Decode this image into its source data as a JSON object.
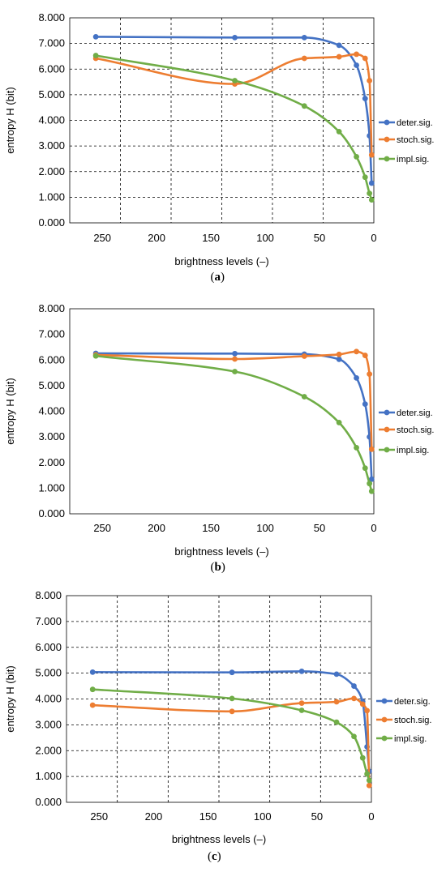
{
  "chart_data": [
    {
      "type": "line",
      "caption": "a",
      "xlabel": "brightness levels (–)",
      "ylabel": "entropy H (bit)",
      "xlim": [
        280,
        0
      ],
      "ylim": [
        0,
        8
      ],
      "x_ticks": [
        "250",
        "200",
        "150",
        "100",
        "50",
        "0"
      ],
      "y_ticks": [
        "0.000",
        "1.000",
        "2.000",
        "3.000",
        "4.000",
        "5.000",
        "6.000",
        "7.000",
        "8.000"
      ],
      "grid": "on",
      "legend": "right",
      "series": [
        {
          "name": "deter.sig.",
          "color": "#4472C4",
          "x": [
            256,
            128,
            64,
            32,
            16,
            8,
            4,
            2
          ],
          "y": [
            7.26,
            7.23,
            7.23,
            6.93,
            6.15,
            4.85,
            3.4,
            1.55
          ]
        },
        {
          "name": "stoch.sig.",
          "color": "#ED7D31",
          "x": [
            256,
            128,
            64,
            32,
            16,
            8,
            4,
            2
          ],
          "y": [
            6.42,
            5.42,
            6.42,
            6.48,
            6.58,
            6.42,
            5.55,
            2.65
          ]
        },
        {
          "name": "impl.sig.",
          "color": "#70AD47",
          "x": [
            256,
            128,
            64,
            32,
            16,
            8,
            4,
            2
          ],
          "y": [
            6.53,
            5.55,
            4.56,
            3.56,
            2.58,
            1.78,
            1.15,
            0.9
          ]
        }
      ]
    },
    {
      "type": "line",
      "caption": "b",
      "xlabel": "brightness levels (–)",
      "ylabel": "entropy H (bit)",
      "xlim": [
        280,
        0
      ],
      "ylim": [
        0,
        8
      ],
      "x_ticks": [
        "250",
        "200",
        "150",
        "100",
        "50",
        "0"
      ],
      "y_ticks": [
        "0.000",
        "1.000",
        "2.000",
        "3.000",
        "4.000",
        "5.000",
        "6.000",
        "7.000",
        "8.000"
      ],
      "grid": "off",
      "legend": "right",
      "series": [
        {
          "name": "deter.sig.",
          "color": "#4472C4",
          "x": [
            256,
            128,
            64,
            32,
            16,
            8,
            4,
            2
          ],
          "y": [
            6.26,
            6.25,
            6.23,
            6.03,
            5.3,
            4.28,
            3.0,
            1.35
          ]
        },
        {
          "name": "stoch.sig.",
          "color": "#ED7D31",
          "x": [
            256,
            128,
            64,
            32,
            16,
            8,
            4,
            2
          ],
          "y": [
            6.2,
            6.04,
            6.15,
            6.22,
            6.33,
            6.18,
            5.45,
            2.52
          ]
        },
        {
          "name": "impl.sig.",
          "color": "#70AD47",
          "x": [
            256,
            128,
            64,
            32,
            16,
            8,
            4,
            2
          ],
          "y": [
            6.16,
            5.55,
            4.57,
            3.56,
            2.58,
            1.78,
            1.18,
            0.88
          ]
        }
      ]
    },
    {
      "type": "line",
      "caption": "c",
      "xlabel": "brightness levels (–)",
      "ylabel": "entropy H (bit)",
      "xlim": [
        280,
        0
      ],
      "ylim": [
        0,
        8
      ],
      "x_ticks": [
        "250",
        "200",
        "150",
        "100",
        "50",
        "0"
      ],
      "y_ticks": [
        "0.000",
        "1.000",
        "2.000",
        "3.000",
        "4.000",
        "5.000",
        "6.000",
        "7.000",
        "8.000"
      ],
      "grid": "on",
      "legend": "right",
      "series": [
        {
          "name": "deter.sig.",
          "color": "#4472C4",
          "x": [
            256,
            128,
            64,
            32,
            16,
            8,
            4,
            2
          ],
          "y": [
            5.04,
            5.03,
            5.07,
            4.96,
            4.5,
            3.9,
            2.15,
            1.2
          ]
        },
        {
          "name": "stoch.sig.",
          "color": "#ED7D31",
          "x": [
            256,
            128,
            64,
            32,
            16,
            8,
            4,
            2
          ],
          "y": [
            3.76,
            3.52,
            3.84,
            3.89,
            4.02,
            3.8,
            3.55,
            0.65
          ]
        },
        {
          "name": "impl.sig.",
          "color": "#70AD47",
          "x": [
            256,
            128,
            64,
            32,
            16,
            8,
            4,
            2
          ],
          "y": [
            4.37,
            4.02,
            3.56,
            3.1,
            2.55,
            1.72,
            1.1,
            0.85
          ]
        }
      ]
    }
  ]
}
